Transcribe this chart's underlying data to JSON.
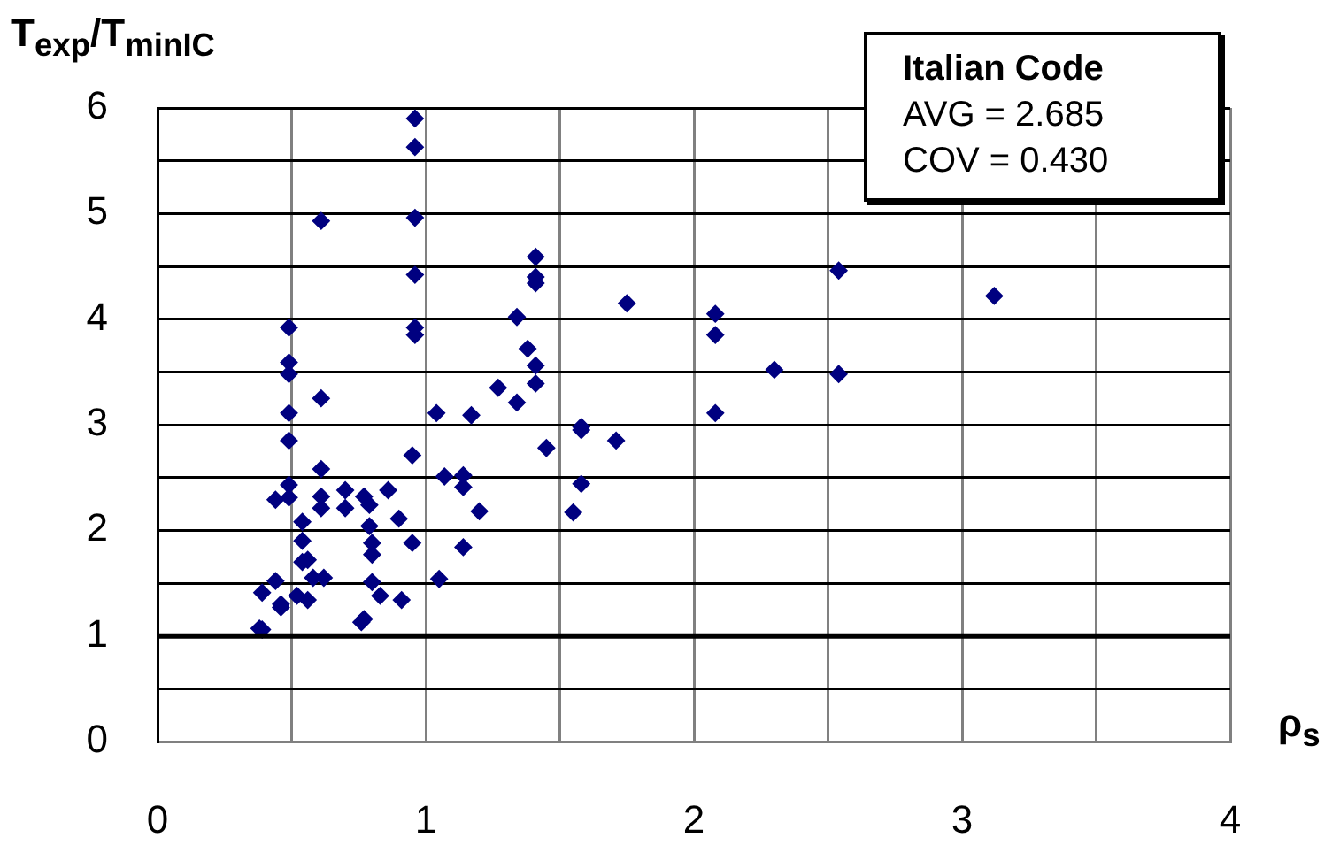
{
  "chart_data": {
    "type": "scatter",
    "xlabel": "ρ$_{s}$",
    "ylabel": "T$_{exp}$/T$_{minIC}$",
    "annotations": [
      "Italian Code",
      "AVG = 2.685",
      "COV = 0.430"
    ],
    "xlim": [
      0,
      4
    ],
    "xticks": [
      0,
      {
        "value": 0.5,
        "label": null
      },
      1,
      {
        "value": 1.5,
        "label": null
      },
      2,
      {
        "value": 2.5,
        "label": null
      },
      3,
      {
        "value": 3.5,
        "label": null
      },
      4
    ],
    "ylim": [
      0,
      6
    ],
    "yticks": [
      0,
      {
        "value": 0.5,
        "label": null
      },
      1,
      {
        "value": 1.5,
        "label": null
      },
      2,
      {
        "value": 2.5,
        "label": null
      },
      3,
      {
        "value": 3.5,
        "label": null
      },
      4,
      {
        "value": 4.5,
        "label": null
      },
      5,
      {
        "value": 5.5,
        "label": null
      },
      6
    ],
    "grid": true,
    "legend": false,
    "marker": "diamond",
    "ref_lines": [
      {
        "axis": "y",
        "value": 1,
        "label": null,
        "color": "#000000",
        "line_style": "solid"
      }
    ],
    "series": [
      {
        "color": "#000080",
        "x": [
          0.96,
          0.96,
          0.61,
          0.96,
          0.96,
          0.96,
          0.96,
          0.49,
          0.49,
          0.49,
          0.61,
          0.49,
          0.49,
          0.95,
          0.61,
          0.49,
          0.44,
          0.49,
          0.61,
          0.61,
          0.7,
          0.7,
          0.77,
          0.79,
          0.86,
          0.79,
          0.9,
          0.54,
          0.54,
          0.8,
          0.8,
          0.95,
          0.54,
          0.56,
          0.58,
          0.62,
          0.8,
          0.44,
          0.39,
          0.46,
          0.46,
          0.52,
          0.56,
          0.83,
          0.91,
          0.77,
          0.76,
          0.38,
          0.39,
          1.04,
          1.17,
          1.07,
          1.14,
          1.14,
          1.2,
          1.14,
          1.05,
          1.27,
          1.41,
          1.41,
          1.41,
          1.34,
          1.75,
          1.38,
          1.41,
          1.41,
          1.34,
          1.58,
          1.58,
          1.71,
          1.45,
          1.58,
          1.55,
          2.08,
          2.08,
          2.08,
          2.3,
          2.54,
          2.54,
          3.12
        ],
        "values": [
          5.9,
          5.63,
          4.93,
          4.96,
          4.42,
          3.92,
          3.85,
          3.92,
          3.59,
          3.48,
          3.25,
          3.11,
          2.85,
          2.71,
          2.58,
          2.43,
          2.29,
          2.31,
          2.32,
          2.21,
          2.38,
          2.21,
          2.32,
          2.24,
          2.38,
          2.04,
          2.11,
          2.08,
          1.9,
          1.88,
          1.77,
          1.88,
          1.7,
          1.72,
          1.55,
          1.55,
          1.51,
          1.52,
          1.41,
          1.3,
          1.27,
          1.38,
          1.34,
          1.38,
          1.34,
          1.16,
          1.13,
          1.07,
          1.06,
          3.11,
          3.09,
          2.51,
          2.52,
          2.41,
          2.18,
          1.84,
          1.54,
          3.35,
          4.59,
          4.4,
          4.34,
          4.02,
          4.15,
          3.72,
          3.56,
          3.39,
          3.21,
          2.98,
          2.95,
          2.85,
          2.78,
          2.44,
          2.17,
          4.05,
          3.85,
          3.11,
          3.52,
          3.48,
          4.46,
          4.22
        ]
      }
    ]
  }
}
